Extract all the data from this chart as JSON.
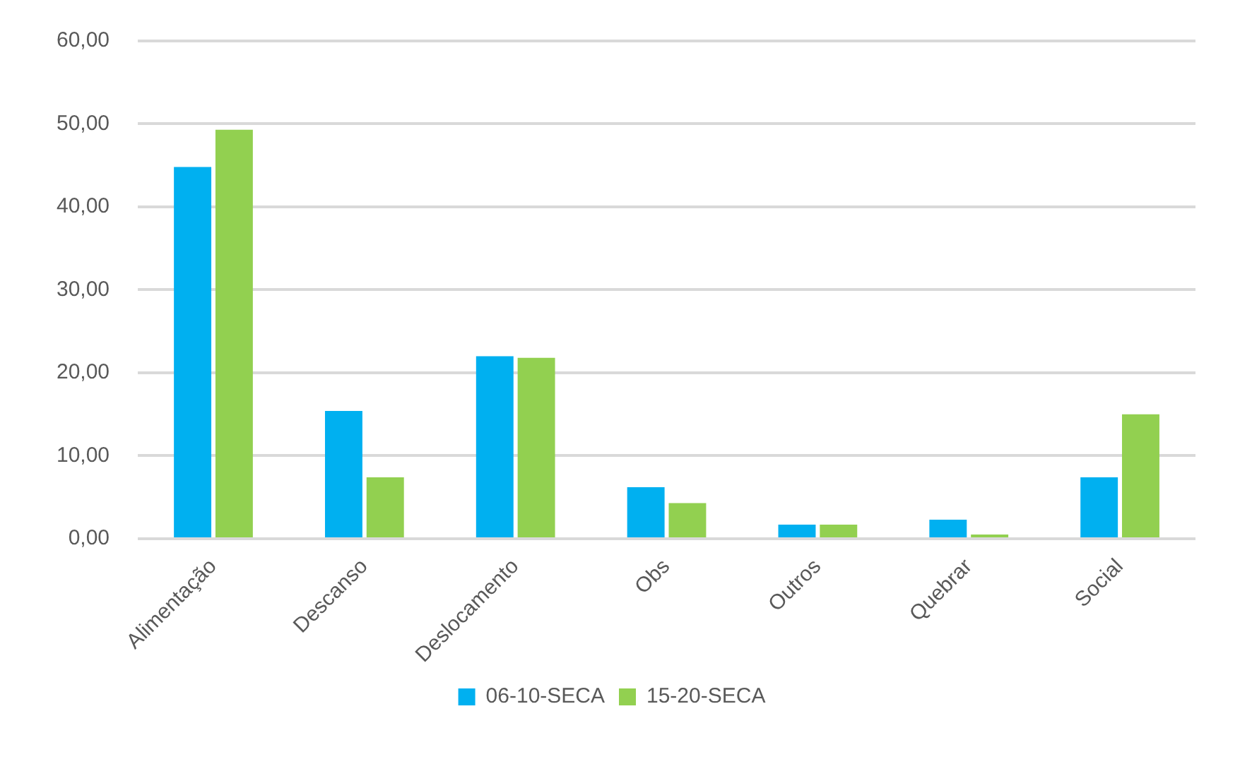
{
  "chart_data": {
    "type": "bar",
    "categories": [
      "Alimentação",
      "Descanso",
      "Deslocamento",
      "Obs",
      "Outros",
      "Quebrar",
      "Social"
    ],
    "series": [
      {
        "name": "06-10-SECA",
        "color": "#00b0f0",
        "values": [
          44.8,
          15.4,
          22.0,
          6.2,
          1.7,
          2.3,
          7.4
        ]
      },
      {
        "name": "15-20-SECA",
        "color": "#92d050",
        "values": [
          49.3,
          7.4,
          21.8,
          4.3,
          1.7,
          0.5,
          15.0
        ]
      }
    ],
    "ylim": [
      0,
      60
    ],
    "yticks": [
      {
        "value": 0,
        "label": "0,00"
      },
      {
        "value": 10,
        "label": "10,00"
      },
      {
        "value": 20,
        "label": "20,00"
      },
      {
        "value": 30,
        "label": "30,00"
      },
      {
        "value": 40,
        "label": "40,00"
      },
      {
        "value": 50,
        "label": "50,00"
      },
      {
        "value": 60,
        "label": "60,00"
      }
    ],
    "grid": "y",
    "legend": "bottom"
  }
}
